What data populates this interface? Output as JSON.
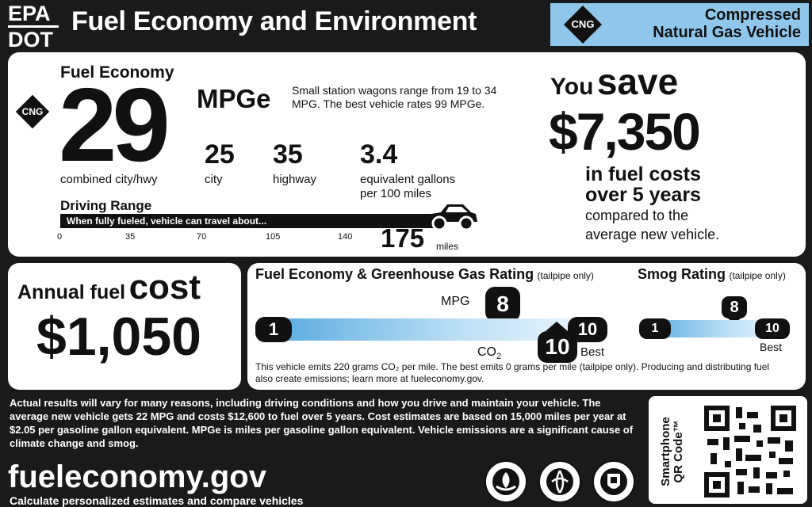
{
  "header": {
    "epa": "EPA",
    "dot": "DOT",
    "title": "Fuel Economy and Environment",
    "vehicle_type_line1": "Compressed",
    "vehicle_type_line2": "Natural Gas Vehicle",
    "fuel_badge": "CNG"
  },
  "fuel_economy": {
    "heading": "Fuel Economy",
    "badge": "CNG",
    "combined": "29",
    "unit": "MPGe",
    "combined_label": "combined city/hwy",
    "comparison": "Small station wagons range from 19 to 34 MPG. The best vehicle rates 99 MPGe.",
    "city": "25",
    "city_label": "city",
    "highway": "35",
    "highway_label": "highway",
    "gallons": "3.4",
    "gallons_label_1": "equivalent gallons",
    "gallons_label_2": "per 100 miles"
  },
  "driving_range": {
    "heading": "Driving Range",
    "caption": "When fully fueled, vehicle can travel about...",
    "ticks": [
      "0",
      "35",
      "70",
      "105",
      "140"
    ],
    "value": "175",
    "unit": "miles"
  },
  "savings": {
    "you": "You",
    "save": "save",
    "amount": "$7,350",
    "line1": "in fuel costs",
    "line2": "over 5 years",
    "line3": "compared to the",
    "line4": "average new vehicle."
  },
  "annual_cost": {
    "line1": "Annual fuel",
    "line1_big": "cost",
    "amount": "$1,050"
  },
  "ghg": {
    "heading": "Fuel Economy & Greenhouse Gas Rating",
    "heading_note": "(tailpipe only)",
    "low": "1",
    "high": "10",
    "best": "Best",
    "mpg_label": "MPG",
    "mpg_rating": "8",
    "co2_label": "CO",
    "co2_sub": "2",
    "co2_rating": "10",
    "note": "This vehicle emits 220 grams CO₂ per mile. The best emits 0 grams per mile (tailpipe only). Producing and distributing fuel also create emissions; learn more at fueleconomy.gov."
  },
  "smog": {
    "heading": "Smog Rating",
    "heading_note": "(tailpipe only)",
    "low": "1",
    "high": "10",
    "rating": "8",
    "best": "Best"
  },
  "footer": {
    "disclaimer": "Actual results will vary for many reasons, including driving conditions and how you drive and maintain your vehicle. The average new vehicle gets 22 MPG and costs $12,600 to fuel over 5 years. Cost estimates are based on 15,000 miles per year at $2.05 per gasoline gallon equivalent. MPGe is miles per gasoline gallon equivalent. Vehicle emissions are a significant cause of climate change and smog.",
    "site": "fueleconomy.gov",
    "tagline": "Calculate personalized estimates and compare vehicles",
    "qr_label_1": "Smartphone",
    "qr_label_2": "QR Code™"
  },
  "colors": {
    "background": "#1a1a1a",
    "accent_blue": "#8fc6ea",
    "scale_start": "#4fa6de",
    "scale_end": "#f2f8fc"
  },
  "ratings_fraction": {
    "mpg": 0.78,
    "co2": 1.0,
    "smog": 0.78,
    "range_fill": 0.86
  }
}
